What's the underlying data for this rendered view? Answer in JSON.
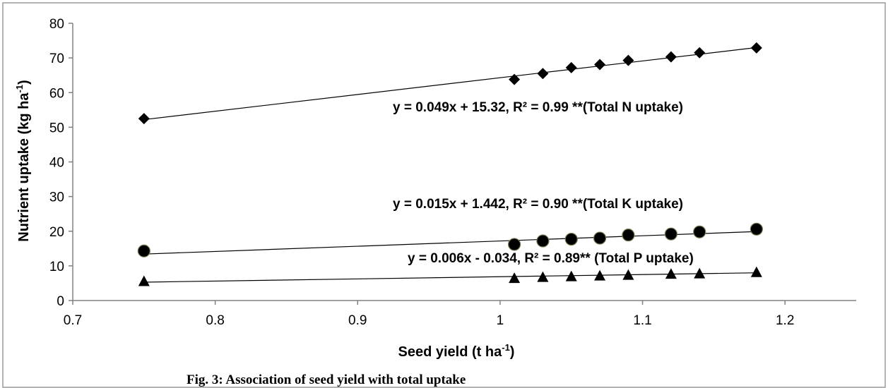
{
  "chart_data": {
    "type": "scatter",
    "xlabel": "Seed yield (t ha",
    "xlabel_sup": "-1",
    "xlabel_end": ")",
    "ylabel": "Nutrient uptake (kg ha",
    "ylabel_sup": "-1",
    "ylabel_end": ")",
    "xlim": [
      0.7,
      1.25
    ],
    "ylim": [
      0,
      80
    ],
    "x_ticks": [
      0.7,
      0.8,
      0.9,
      1,
      1.1,
      1.2
    ],
    "x_tick_labels": [
      "0.7",
      "0.8",
      "0.9",
      "1",
      "1.1",
      "1.2"
    ],
    "y_ticks": [
      0,
      10,
      20,
      30,
      40,
      50,
      60,
      70,
      80
    ],
    "y_tick_labels": [
      "0",
      "10",
      "20",
      "30",
      "40",
      "50",
      "60",
      "70",
      "80"
    ],
    "grid": false,
    "caption": "Fig. 3: Association of seed yield with total uptake",
    "series": [
      {
        "marker": "diamond",
        "x": [
          0.75,
          1.01,
          1.03,
          1.05,
          1.07,
          1.09,
          1.12,
          1.14,
          1.18
        ],
        "y": [
          52.5,
          63.8,
          65.5,
          67.2,
          68.1,
          69.3,
          70.3,
          71.5,
          72.9
        ],
        "trendline": {
          "x": [
            0.75,
            1.18
          ],
          "y": [
            52.2,
            73.0
          ]
        },
        "equation": "y = 0.049x + 15.32, R² = 0.99 **(Total  N uptake)"
      },
      {
        "marker": "circle",
        "x": [
          0.75,
          1.01,
          1.03,
          1.05,
          1.07,
          1.09,
          1.12,
          1.14,
          1.18
        ],
        "y": [
          14.3,
          16.2,
          17.2,
          17.7,
          18.0,
          18.9,
          19.2,
          19.8,
          20.6
        ],
        "trendline": {
          "x": [
            0.75,
            1.18
          ],
          "y": [
            13.4,
            19.9
          ]
        },
        "equation": "y = 0.015x + 1.442, R² = 0.90 **(Total K uptake)"
      },
      {
        "marker": "triangle",
        "x": [
          0.75,
          1.01,
          1.03,
          1.05,
          1.07,
          1.09,
          1.12,
          1.14,
          1.18
        ],
        "y": [
          5.6,
          6.5,
          6.8,
          7.0,
          7.2,
          7.4,
          7.7,
          7.8,
          8.2
        ],
        "trendline": {
          "x": [
            0.75,
            1.18
          ],
          "y": [
            5.3,
            8.0
          ]
        },
        "equation": "y = 0.006x - 0.034, R² = 0.89** (Total P uptake)"
      }
    ]
  }
}
